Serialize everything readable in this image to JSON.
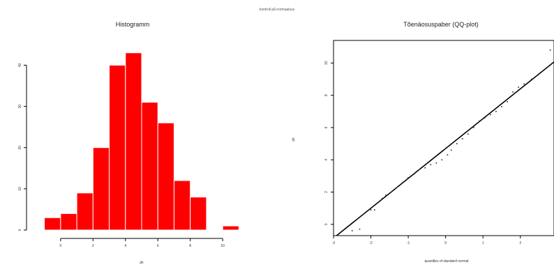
{
  "figure": {
    "subtitle": "kontroll på normaalsus"
  },
  "chart_data": [
    {
      "type": "bar",
      "title": "Histogramm",
      "xlabel": "pk",
      "ylabel": "",
      "colors": {
        "bar": "#ff0000",
        "bar_edge": "#ffffff",
        "axis": "#000000"
      },
      "bins": [
        {
          "x0": -1,
          "x1": 0,
          "value": 3
        },
        {
          "x0": 0,
          "x1": 1,
          "value": 4
        },
        {
          "x0": 1,
          "x1": 2,
          "value": 9
        },
        {
          "x0": 2,
          "x1": 3,
          "value": 20
        },
        {
          "x0": 3,
          "x1": 4,
          "value": 40
        },
        {
          "x0": 4,
          "x1": 5,
          "value": 43
        },
        {
          "x0": 5,
          "x1": 6,
          "value": 31
        },
        {
          "x0": 6,
          "x1": 7,
          "value": 26
        },
        {
          "x0": 7,
          "x1": 8,
          "value": 12
        },
        {
          "x0": 8,
          "x1": 9,
          "value": 8
        },
        {
          "x0": 9,
          "x1": 10,
          "value": 0
        },
        {
          "x0": 10,
          "x1": 11,
          "value": 1
        }
      ],
      "xlim": [
        -1.5,
        11.5
      ],
      "ylim": [
        0,
        46
      ],
      "xticks": [
        0,
        2,
        4,
        6,
        8,
        10
      ],
      "xtick_labels": [
        "0",
        "2",
        "4",
        "6",
        "8",
        "10"
      ],
      "yticks": [
        0,
        10,
        20,
        30,
        40
      ],
      "ytick_labels": [
        "0",
        "10",
        "20",
        "30",
        "40"
      ],
      "grid": false
    },
    {
      "type": "scatter",
      "title": "Tõenäosuspaber (QQ-plot)",
      "xlabel": "quantiles of standard normal",
      "ylabel": "pk",
      "colors": {
        "points": "#444444",
        "line": "#000000",
        "frame": "#000000"
      },
      "xlim": [
        -3,
        2.9
      ],
      "ylim": [
        -0.7,
        11.4
      ],
      "xticks": [
        -3,
        -2,
        -1,
        0,
        1,
        2
      ],
      "xtick_labels": [
        "-3",
        "-2",
        "-1",
        "0",
        "1",
        "2"
      ],
      "yticks": [
        0,
        2,
        4,
        6,
        8,
        10
      ],
      "ytick_labels": [
        "0",
        "2",
        "4",
        "6",
        "8",
        "10"
      ],
      "reference_line": {
        "intercept": 4.7,
        "slope": 1.85
      },
      "points": [
        {
          "x": -2.5,
          "y": -0.4
        },
        {
          "x": -2.3,
          "y": -0.3
        },
        {
          "x": -2.0,
          "y": 0.9
        },
        {
          "x": -1.9,
          "y": 0.9
        },
        {
          "x": -1.7,
          "y": 1.6
        },
        {
          "x": -1.6,
          "y": 1.8
        },
        {
          "x": -1.45,
          "y": 2.0
        },
        {
          "x": -1.3,
          "y": 2.3
        },
        {
          "x": -1.15,
          "y": 2.6
        },
        {
          "x": -1.0,
          "y": 2.9
        },
        {
          "x": -0.85,
          "y": 3.1
        },
        {
          "x": -0.7,
          "y": 3.4
        },
        {
          "x": -0.55,
          "y": 3.5
        },
        {
          "x": -0.4,
          "y": 3.7
        },
        {
          "x": -0.25,
          "y": 3.8
        },
        {
          "x": -0.1,
          "y": 4.0
        },
        {
          "x": 0.05,
          "y": 4.3
        },
        {
          "x": 0.15,
          "y": 4.6
        },
        {
          "x": 0.3,
          "y": 5.0
        },
        {
          "x": 0.45,
          "y": 5.3
        },
        {
          "x": 0.6,
          "y": 5.6
        },
        {
          "x": 0.75,
          "y": 6.0
        },
        {
          "x": 0.9,
          "y": 6.4
        },
        {
          "x": 1.05,
          "y": 6.6
        },
        {
          "x": 1.2,
          "y": 6.8
        },
        {
          "x": 1.35,
          "y": 7.0
        },
        {
          "x": 1.5,
          "y": 7.3
        },
        {
          "x": 1.65,
          "y": 7.6
        },
        {
          "x": 1.8,
          "y": 8.2
        },
        {
          "x": 1.95,
          "y": 8.5
        },
        {
          "x": 2.1,
          "y": 8.7
        },
        {
          "x": 2.3,
          "y": 9.0
        },
        {
          "x": 2.8,
          "y": 10.8
        }
      ],
      "grid": false
    }
  ]
}
